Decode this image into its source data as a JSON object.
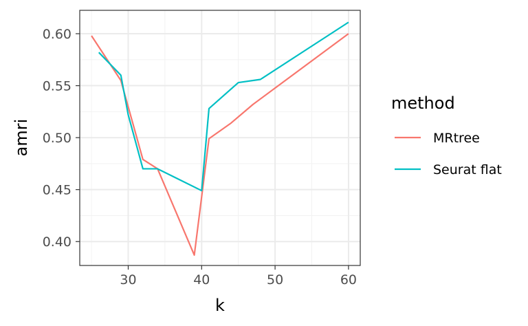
{
  "chart_data": {
    "type": "line",
    "xlabel": "k",
    "ylabel": "amri",
    "xlim": [
      23.4,
      61.6
    ],
    "ylim": [
      0.377,
      0.6225
    ],
    "x_ticks": [
      30,
      40,
      50,
      60
    ],
    "x_tick_labels": [
      "30",
      "40",
      "50",
      "60"
    ],
    "x_minor_ticks": [
      25,
      35,
      45,
      55
    ],
    "y_ticks": [
      0.4,
      0.45,
      0.5,
      0.55,
      0.6
    ],
    "y_tick_labels": [
      "0.40",
      "0.45",
      "0.50",
      "0.55",
      "0.60"
    ],
    "y_minor_ticks": [
      0.425,
      0.475,
      0.525,
      0.575
    ],
    "grid": true,
    "legend": {
      "title": "method",
      "placement": "right"
    },
    "series": [
      {
        "name": "MRtree",
        "color": "#F8766D",
        "x": [
          25,
          29,
          32,
          34,
          39,
          41,
          44,
          47,
          60
        ],
        "y": [
          0.598,
          0.555,
          0.479,
          0.47,
          0.387,
          0.499,
          0.514,
          0.532,
          0.6
        ]
      },
      {
        "name": "Seurat flat",
        "color": "#00BFC4",
        "x": [
          26,
          29,
          30,
          32,
          34,
          40,
          41,
          45,
          48,
          60
        ],
        "y": [
          0.582,
          0.56,
          0.522,
          0.47,
          0.47,
          0.449,
          0.528,
          0.553,
          0.556,
          0.611
        ]
      }
    ]
  }
}
